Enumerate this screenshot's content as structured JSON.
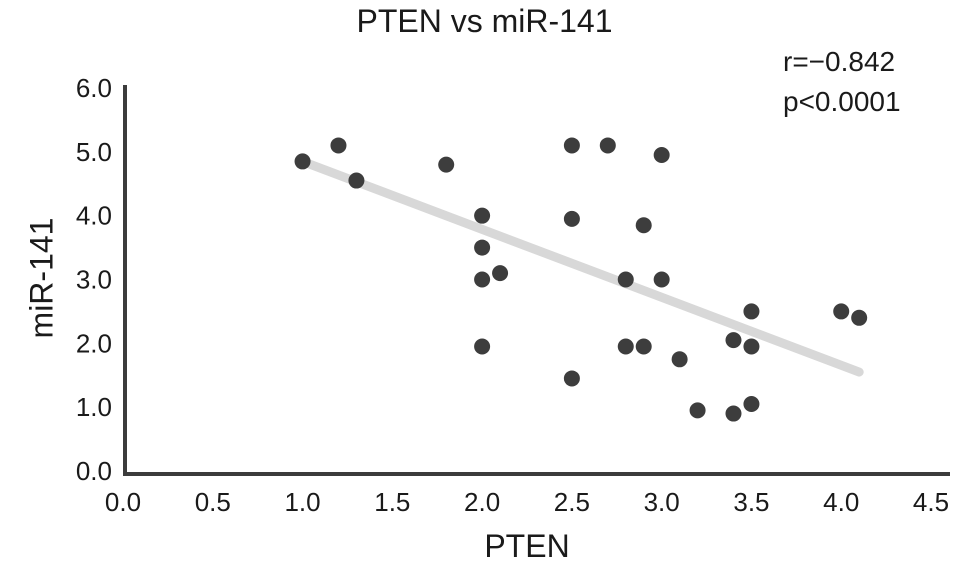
{
  "chart_data": {
    "type": "scatter",
    "title": "PTEN vs miR-141",
    "xlabel": "PTEN",
    "ylabel": "miR-141",
    "xlim": [
      0.0,
      4.5
    ],
    "ylim": [
      0.0,
      6.0
    ],
    "grid": false,
    "legend": "none",
    "x_ticks": [
      "0.0",
      "0.5",
      "1.0",
      "1.5",
      "2.0",
      "2.5",
      "3.0",
      "3.5",
      "4.0",
      "4.5"
    ],
    "y_ticks": [
      "0.0",
      "1.0",
      "2.0",
      "3.0",
      "4.0",
      "5.0",
      "6.0"
    ],
    "points": [
      [
        1.0,
        4.85
      ],
      [
        1.2,
        5.1
      ],
      [
        1.3,
        4.55
      ],
      [
        1.8,
        4.8
      ],
      [
        2.0,
        4.0
      ],
      [
        2.0,
        3.5
      ],
      [
        2.0,
        3.0
      ],
      [
        2.1,
        3.1
      ],
      [
        2.0,
        1.95
      ],
      [
        2.5,
        5.1
      ],
      [
        2.5,
        3.95
      ],
      [
        2.5,
        1.45
      ],
      [
        2.7,
        5.1
      ],
      [
        2.8,
        3.0
      ],
      [
        2.8,
        1.95
      ],
      [
        2.9,
        3.85
      ],
      [
        2.9,
        1.95
      ],
      [
        3.0,
        4.95
      ],
      [
        3.0,
        3.0
      ],
      [
        3.1,
        1.75
      ],
      [
        3.2,
        0.95
      ],
      [
        3.4,
        2.05
      ],
      [
        3.4,
        0.9
      ],
      [
        3.5,
        2.5
      ],
      [
        3.5,
        1.95
      ],
      [
        3.5,
        1.05
      ],
      [
        4.0,
        2.5
      ],
      [
        4.1,
        2.4
      ]
    ],
    "trendline": {
      "x1": 1.0,
      "y1": 4.85,
      "x2": 4.1,
      "y2": 1.55
    },
    "annotation": [
      "r=−0.842",
      "p<0.0001"
    ],
    "colors": {
      "point": "#3d3d3d",
      "trendline": "#d8d8d8",
      "axis": "#3c3c3c",
      "text": "#1a1a1a",
      "background": "#ffffff"
    }
  }
}
